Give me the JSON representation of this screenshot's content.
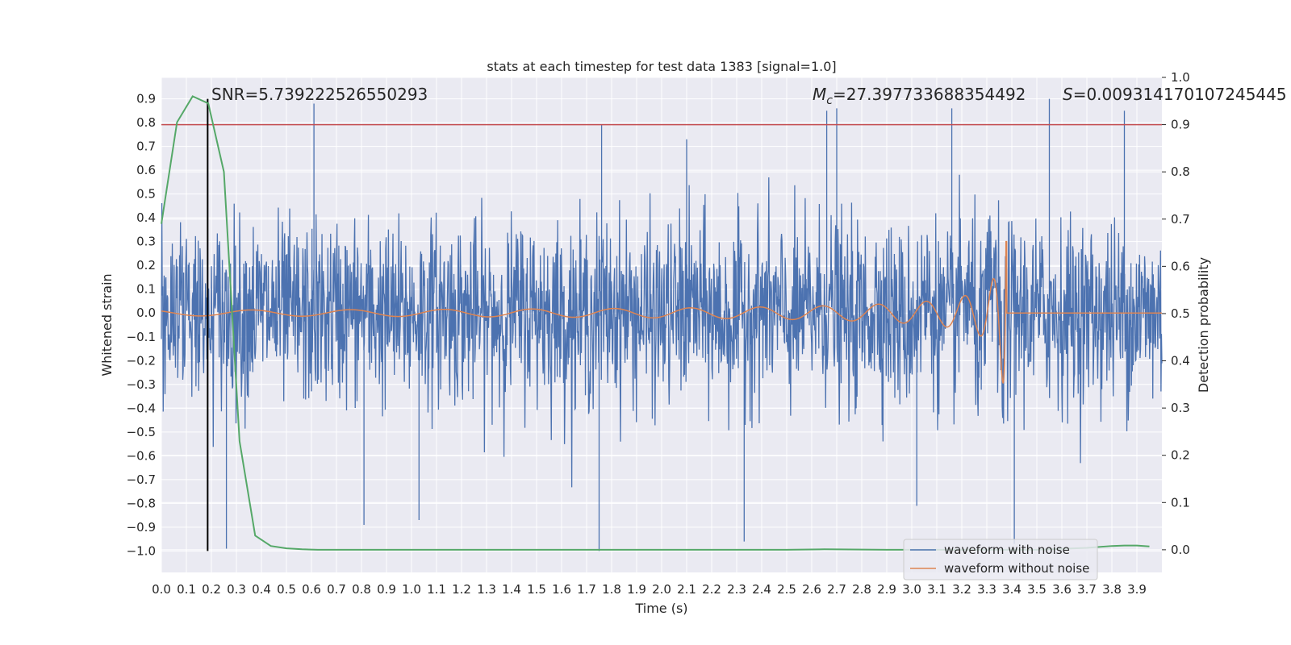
{
  "chart_data": {
    "type": "line",
    "title": "stats at each timestep for test data 1383 [signal=1.0]",
    "xlabel": "Time (s)",
    "ylabel": "Whitened strain",
    "y2label": "Detection probability",
    "xlim": [
      0.0,
      4.0
    ],
    "ylim": [
      -1.09,
      0.99
    ],
    "y2lim": [
      -0.048,
      1.0
    ],
    "grid": true,
    "legend_placement": "lower right",
    "x_ticks": [
      "0.0",
      "0.1",
      "0.2",
      "0.3",
      "0.4",
      "0.5",
      "0.6",
      "0.7",
      "0.8",
      "0.9",
      "1.0",
      "1.1",
      "1.2",
      "1.3",
      "1.4",
      "1.5",
      "1.6",
      "1.7",
      "1.8",
      "1.9",
      "2.0",
      "2.1",
      "2.2",
      "2.3",
      "2.4",
      "2.5",
      "2.6",
      "2.7",
      "2.8",
      "2.9",
      "3.0",
      "3.1",
      "3.2",
      "3.3",
      "3.4",
      "3.5",
      "3.6",
      "3.7",
      "3.8",
      "3.9"
    ],
    "y_ticks": [
      "0.9",
      "0.8",
      "0.7",
      "0.6",
      "0.5",
      "0.4",
      "0.3",
      "0.2",
      "0.1",
      "0.0",
      "−0.1",
      "−0.2",
      "−0.3",
      "−0.4",
      "−0.5",
      "−0.6",
      "−0.7",
      "−0.8",
      "−0.9",
      "−1.0"
    ],
    "y2_ticks": [
      "1.0",
      "0.9",
      "0.8",
      "0.7",
      "0.6",
      "0.5",
      "0.4",
      "0.3",
      "0.2",
      "0.1",
      "0.0"
    ],
    "annotations": {
      "snr": "SNR=5.739222526550293",
      "mc_symbol": "M",
      "mc_subscript": "c",
      "mc_value": "=27.397733688354492",
      "s_symbol": "S",
      "s_value": "=0.009314170107245445"
    },
    "series": [
      {
        "name": "waveform with noise",
        "color": "#4c72b0",
        "noise_std": 0.19,
        "spikes": [
          {
            "x": 0.61,
            "y": 0.88
          },
          {
            "x": 1.75,
            "y": -1.0
          },
          {
            "x": 1.76,
            "y": 0.79
          },
          {
            "x": 0.81,
            "y": -0.89
          },
          {
            "x": 1.03,
            "y": -0.87
          },
          {
            "x": 2.33,
            "y": -0.96
          },
          {
            "x": 3.55,
            "y": 0.9
          },
          {
            "x": 3.85,
            "y": 0.85
          },
          {
            "x": 3.41,
            "y": -0.97
          },
          {
            "x": 2.66,
            "y": 0.85
          },
          {
            "x": 2.7,
            "y": 0.86
          },
          {
            "x": 0.26,
            "y": -0.99
          },
          {
            "x": 3.02,
            "y": -0.81
          },
          {
            "x": 3.16,
            "y": 0.86
          },
          {
            "x": 2.1,
            "y": 0.73
          }
        ]
      },
      {
        "name": "waveform without noise",
        "color": "#dd8452",
        "merger_time": 3.38,
        "peak_amplitude": 0.3,
        "min_amplitude": -0.34
      },
      {
        "name": "detection probability",
        "color": "#55a868",
        "axis": "right",
        "x": [
          0.0,
          0.0625,
          0.125,
          0.1875,
          0.25,
          0.3125,
          0.375,
          0.4375,
          0.5,
          0.5625,
          0.625,
          0.75,
          1.0,
          1.5,
          2.0,
          2.5,
          2.65,
          2.9,
          3.2,
          3.5,
          3.7,
          3.8,
          3.85,
          3.9,
          3.95
        ],
        "y": [
          0.69,
          0.905,
          0.96,
          0.945,
          0.8,
          0.23,
          0.03,
          0.008,
          0.003,
          0.001,
          0.0,
          0.0,
          0.0,
          0.0,
          0.0,
          0.0,
          0.001,
          0.0,
          0.0,
          0.0,
          0.004,
          0.008,
          0.009,
          0.009,
          0.007
        ]
      }
    ],
    "reference_lines": [
      {
        "kind": "threshold",
        "axis": "right",
        "y": 0.9,
        "color": "#c44e52"
      },
      {
        "kind": "marker",
        "x": 0.185,
        "y_range": [
          -1.0,
          0.9
        ],
        "color": "#000000"
      }
    ]
  }
}
